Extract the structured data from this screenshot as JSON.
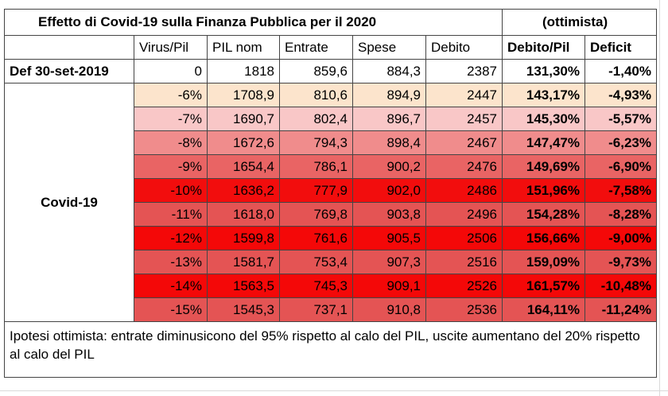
{
  "title": "Effetto di Covid-19 sulla Finanza Pubblica per il 2020",
  "title_tag": "(ottimista)",
  "headers": [
    "Virus/Pil",
    "PIL nom",
    "Entrate",
    "Spese",
    "Debito",
    "Debito/Pil",
    "Deficit"
  ],
  "baseline": {
    "label": "Def 30-set-2019",
    "values": [
      "0",
      "1818",
      "859,6",
      "884,3",
      "2387",
      "131,30%",
      "-1,40%"
    ]
  },
  "scenario_label": "Covid-19",
  "rows": [
    {
      "values": [
        "-6%",
        "1708,9",
        "810,6",
        "894,9",
        "2447",
        "143,17%",
        "-4,93%"
      ],
      "fill": "#fce4cc",
      "pct_fill": "#fbe6cf"
    },
    {
      "values": [
        "-7%",
        "1690,7",
        "802,4",
        "896,7",
        "2457",
        "145,30%",
        "-5,57%"
      ],
      "fill": "#f9c7c7",
      "pct_fill": "#f9c9c9"
    },
    {
      "values": [
        "-8%",
        "1672,6",
        "794,3",
        "898,4",
        "2467",
        "147,47%",
        "-6,23%"
      ],
      "fill": "#f08c8c",
      "pct_fill": "#f08c8c"
    },
    {
      "values": [
        "-9%",
        "1654,4",
        "786,1",
        "900,2",
        "2476",
        "149,69%",
        "-6,90%"
      ],
      "fill": "#e96464",
      "pct_fill": "#e96464"
    },
    {
      "values": [
        "-10%",
        "1636,2",
        "777,9",
        "902,0",
        "2486",
        "151,96%",
        "-7,58%"
      ],
      "fill": "#f20d0d",
      "pct_fill": "#f20d0d"
    },
    {
      "values": [
        "-11%",
        "1618,0",
        "769,8",
        "903,8",
        "2496",
        "154,28%",
        "-8,28%"
      ],
      "fill": "#e45454",
      "pct_fill": "#e45454"
    },
    {
      "values": [
        "-12%",
        "1599,8",
        "761,6",
        "905,5",
        "2506",
        "156,66%",
        "-9,00%"
      ],
      "fill": "#f40808",
      "pct_fill": "#f40808"
    },
    {
      "values": [
        "-13%",
        "1581,7",
        "753,4",
        "907,3",
        "2516",
        "159,09%",
        "-9,73%"
      ],
      "fill": "#e45454",
      "pct_fill": "#e45454"
    },
    {
      "values": [
        "-14%",
        "1563,5",
        "745,3",
        "909,1",
        "2526",
        "161,57%",
        "-10,48%"
      ],
      "fill": "#f40808",
      "pct_fill": "#f40808"
    },
    {
      "values": [
        "-15%",
        "1545,3",
        "737,1",
        "910,8",
        "2536",
        "164,11%",
        "-11,24%"
      ],
      "fill": "#e45454",
      "pct_fill": "#e45454"
    }
  ],
  "note": "Ipotesi ottimista: entrate diminusicono del 95% rispetto al calo del PIL, uscite aumentano del 20% rispetto al calo del PIL",
  "colors": {
    "border": "#444444",
    "gridline": "#d9d9d9"
  }
}
